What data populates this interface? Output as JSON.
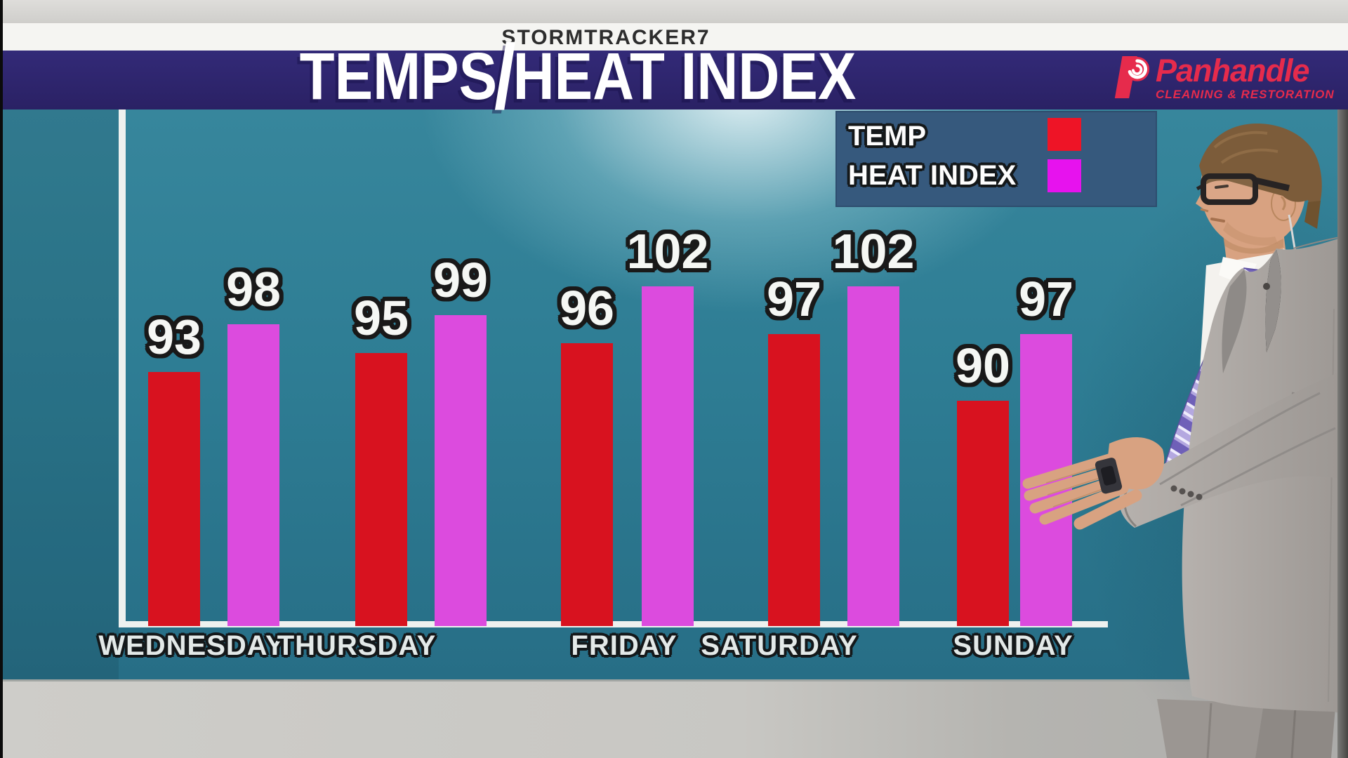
{
  "top_bar": {
    "kicker": "STORMTRACKER7"
  },
  "banner": {
    "title": "TEMPS/HEAT INDEX",
    "sponsor": {
      "brand": "Panhandle",
      "tagline": "CLEANING & RESTORATION",
      "brand_color": "#e62b4c"
    }
  },
  "legend": {
    "items": [
      {
        "label": "TEMP",
        "color": "#ee1426"
      },
      {
        "label": "HEAT INDEX",
        "color": "#e712ee"
      }
    ]
  },
  "chart_data": {
    "type": "bar",
    "title": "TEMPS/HEAT INDEX",
    "categories": [
      "WEDNESDAY",
      "THURSDAY",
      "FRIDAY",
      "SATURDAY",
      "SUNDAY"
    ],
    "series": [
      {
        "name": "TEMP",
        "color": "#d8121f",
        "values": [
          93,
          95,
          96,
          97,
          90
        ]
      },
      {
        "name": "HEAT INDEX",
        "color": "#dc4bde",
        "values": [
          98,
          99,
          102,
          102,
          97
        ]
      }
    ],
    "xlabel": "",
    "ylabel": "",
    "ylim": [
      66,
      106
    ],
    "grid": false,
    "legend_position": "top-right",
    "value_labels": true
  },
  "colors": {
    "wall": "#2e7d95",
    "banner_bg": "#2b2268",
    "legend_bg": "#36597d",
    "floor": "#c8c7c3",
    "axis": "#eef1ef"
  }
}
